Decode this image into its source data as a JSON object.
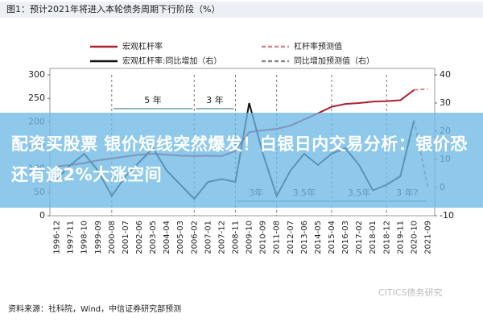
{
  "chart_data": {
    "type": "line",
    "title": "图1：预计2021年将进入本轮债务周期下行阶段（%）",
    "categories": [
      "1996-12",
      "1997-11",
      "1998-10",
      "1999-09",
      "2000-08",
      "2001-07",
      "2002-06",
      "2003-05",
      "2004-04",
      "2005-03",
      "2006-02",
      "2007-01",
      "2007-12",
      "2008-11",
      "2009-10",
      "2010-09",
      "2011-08",
      "2012-07",
      "2013-06",
      "2014-05",
      "2015-04",
      "2016-03",
      "2017-02",
      "2018-01",
      "2018-12",
      "2019-11",
      "2020-10",
      "2021-09"
    ],
    "series": [
      {
        "name": "宏观杠杆率",
        "color": "#b01e2a",
        "dash": false,
        "values": [
          105,
          108,
          112,
          118,
          122,
          126,
          130,
          132,
          130,
          128,
          127,
          128,
          127,
          138,
          178,
          182,
          185,
          192,
          205,
          218,
          232,
          238,
          240,
          243,
          244,
          246,
          268,
          null
        ]
      },
      {
        "name": "杠杆率预测值",
        "color": "#d9848a",
        "dash": true,
        "values": [
          null,
          null,
          null,
          null,
          null,
          null,
          null,
          null,
          null,
          null,
          null,
          null,
          null,
          null,
          null,
          null,
          null,
          null,
          null,
          null,
          null,
          null,
          null,
          null,
          null,
          null,
          268,
          270
        ]
      },
      {
        "name": "宏观杠杆率:同比增加（右）",
        "color": "#111111",
        "dash": false,
        "axis": "y2",
        "values": [
          3,
          8,
          12,
          6,
          -3,
          4,
          9,
          14,
          6,
          1,
          -4,
          2,
          3,
          2,
          30,
          12,
          -3,
          6,
          12,
          8,
          12,
          14,
          8,
          -1,
          1,
          4,
          24,
          null
        ]
      },
      {
        "name": "同比增加预测值（右）",
        "color": "#888888",
        "dash": true,
        "axis": "y2",
        "values": [
          null,
          null,
          null,
          null,
          null,
          null,
          null,
          null,
          null,
          null,
          null,
          null,
          null,
          null,
          null,
          null,
          null,
          null,
          null,
          null,
          null,
          null,
          null,
          null,
          null,
          null,
          24,
          0
        ]
      }
    ],
    "ylim": [
      0,
      300
    ],
    "yticks": [
      0,
      50,
      100,
      150,
      200,
      250,
      300
    ],
    "y2lim": [
      -10,
      40
    ],
    "y2ticks": [
      -10,
      0,
      10,
      20,
      30,
      40
    ],
    "annotations": [
      "5 年",
      "3 年",
      "3年",
      "3.5年",
      "3.5年",
      "3 年?"
    ],
    "source": "资料来源：社科院，Wind，中信证券研究部预测",
    "watermark": "CITICS债务研究"
  },
  "banner": "配资买股票 银价短线突然爆发！白银日内交易分析：银价恐还有逾2%大涨空间"
}
